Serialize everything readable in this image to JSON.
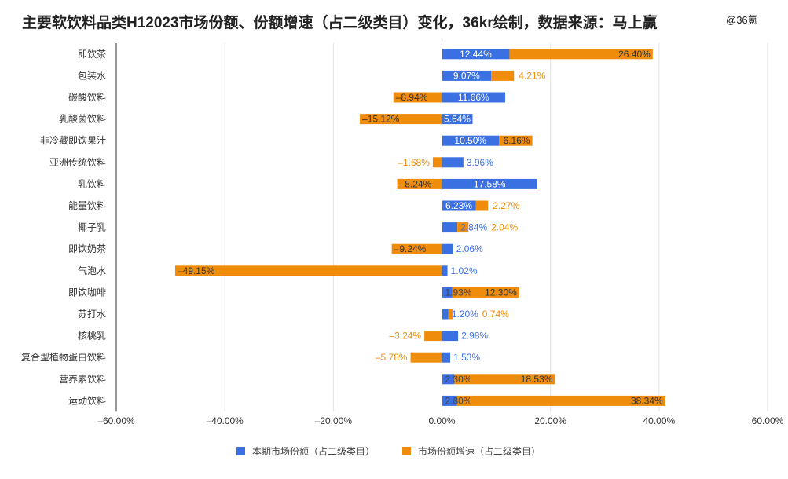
{
  "watermark": "@36氪",
  "chart_data": {
    "type": "bar",
    "orientation": "horizontal",
    "title": "主要软饮料品类H12023市场份额、份额增速（占二级类目）变化，36kr绘制，数据来源：马上赢",
    "categories": [
      "即饮茶",
      "包装水",
      "碳酸饮料",
      "乳酸菌饮料",
      "非冷藏即饮果汁",
      "亚洲传统饮料",
      "乳饮料",
      "能量饮料",
      "椰子乳",
      "即饮奶茶",
      "气泡水",
      "即饮咖啡",
      "苏打水",
      "核桃乳",
      "复合型植物蛋白饮料",
      "营养素饮料",
      "运动饮料"
    ],
    "series": [
      {
        "name": "本期市场份额（占二级类目）",
        "color": "#3b70e3",
        "values": [
          12.44,
          9.07,
          11.66,
          5.64,
          10.5,
          3.96,
          17.58,
          6.23,
          2.84,
          2.06,
          1.02,
          1.93,
          1.2,
          2.98,
          1.53,
          2.3,
          2.8
        ],
        "labels": [
          "12.44%",
          "9.07%",
          "11.66%",
          "5.64%",
          "10.50%",
          "3.96%",
          "17.58%",
          "6.23%",
          "2.84%",
          "2.06%",
          "1.02%",
          "1.93%",
          "1.20%",
          "2.98%",
          "1.53%",
          "2.30%",
          "2.80%"
        ]
      },
      {
        "name": "市场份额增速（占二级类目）",
        "color": "#f08c0c",
        "values": [
          26.4,
          4.21,
          -8.94,
          -15.12,
          6.16,
          -1.68,
          -8.24,
          2.27,
          2.04,
          -9.24,
          -49.15,
          12.3,
          0.74,
          -3.24,
          -5.78,
          18.53,
          38.34
        ],
        "labels": [
          "26.40%",
          "4.21%",
          "–8.94%",
          "–15.12%",
          "6.16%",
          "–1.68%",
          "–8.24%",
          "2.27%",
          "2.04%",
          "–9.24%",
          "–49.15%",
          "12.30%",
          "0.74%",
          "–3.24%",
          "–5.78%",
          "18.53%",
          "38.34%"
        ]
      }
    ],
    "xlim": [
      -60,
      60
    ],
    "xticks": [
      -60,
      -40,
      -20,
      0,
      20,
      40,
      60
    ],
    "xtick_labels": [
      "–60.00%",
      "–40.00%",
      "–20.00%",
      "0.00%",
      "20.00%",
      "40.00%",
      "60.00%"
    ],
    "grid": true,
    "legend_position": "bottom"
  }
}
